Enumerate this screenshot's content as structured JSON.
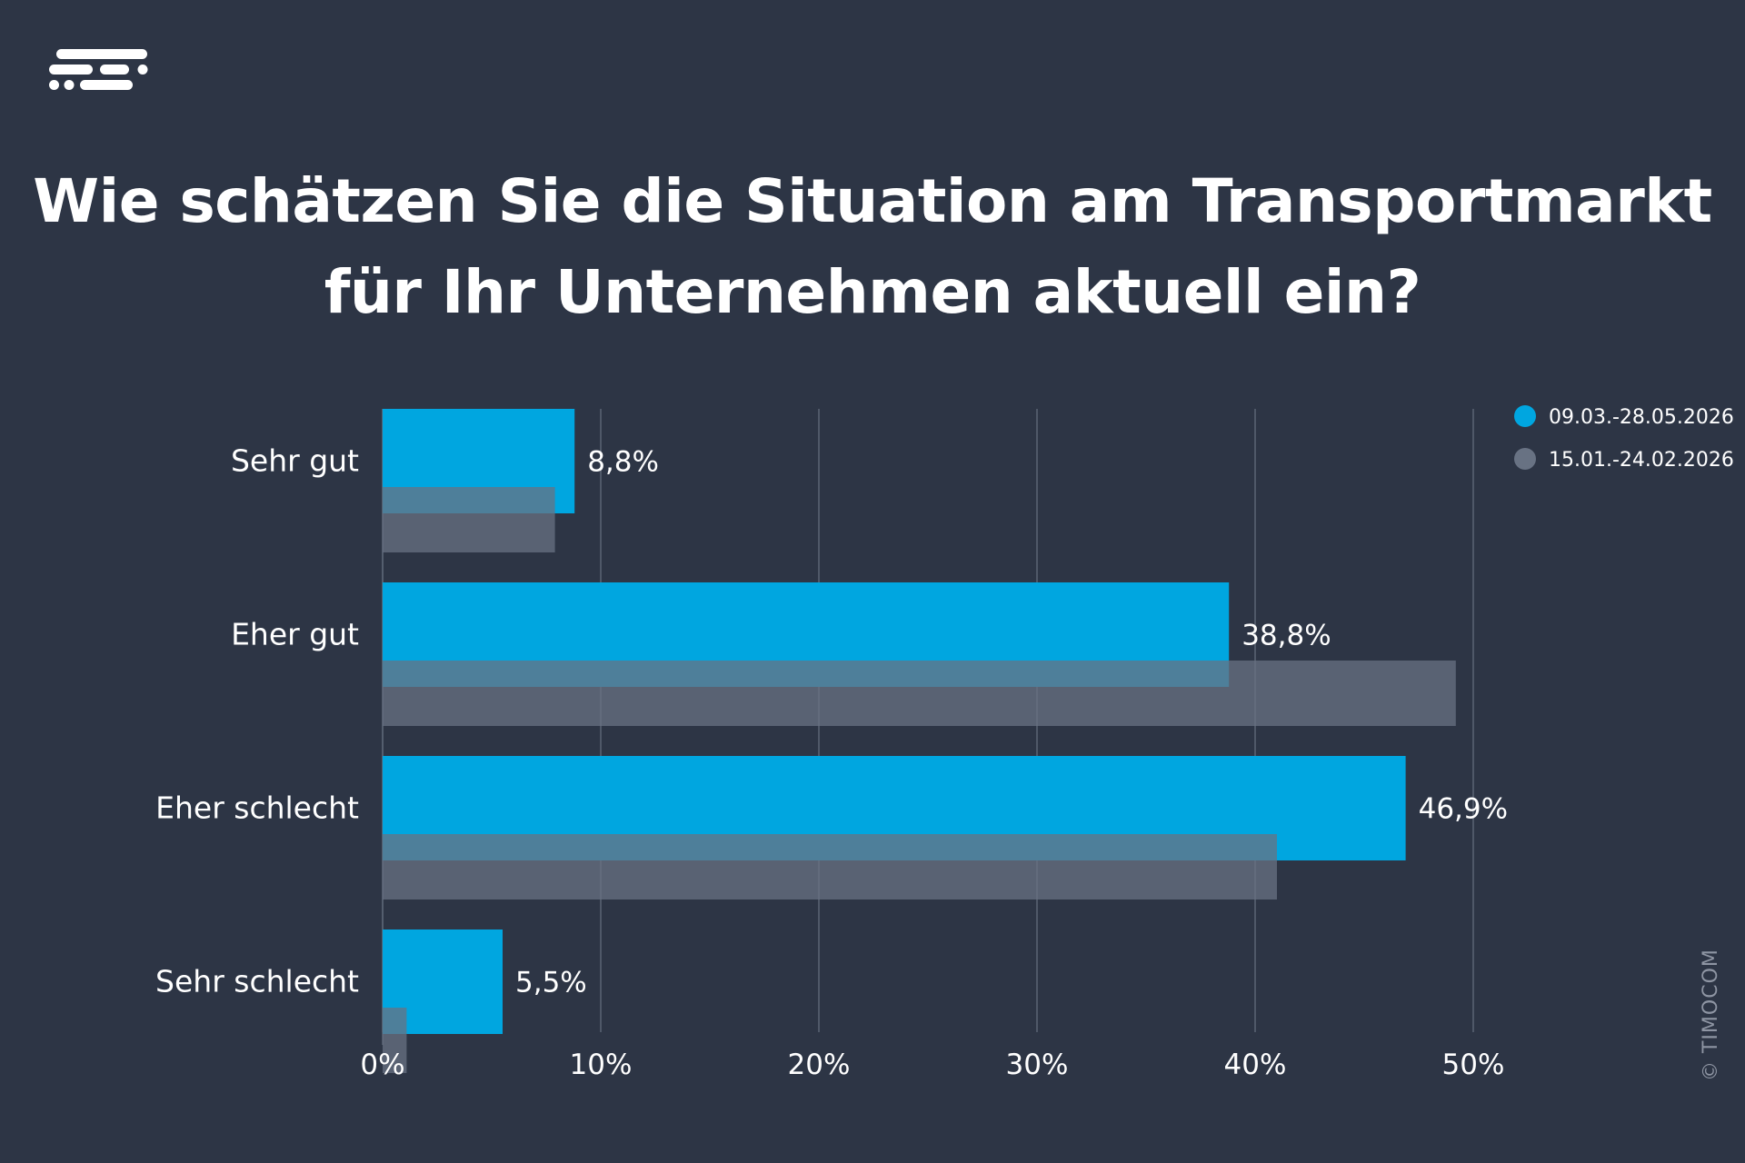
{
  "title": {
    "line1": "Wie schätzen Sie die Situation am Transportmarkt",
    "line2": "für Ihr Unternehmen aktuell ein?"
  },
  "logo": {
    "icon": "timocom-speed-lines-logo"
  },
  "copyright": "© TIMOCOM",
  "colors": {
    "background": "#2d3545",
    "current": "#00a6e0",
    "previous": "#687283",
    "grid": "#5b6474"
  },
  "chart_data": {
    "type": "bar",
    "orientation": "horizontal",
    "title": "Wie schätzen Sie die Situation am Transportmarkt für Ihr Unternehmen aktuell ein?",
    "categories": [
      "Sehr gut",
      "Eher gut",
      "Eher schlecht",
      "Sehr schlecht"
    ],
    "series": [
      {
        "name": "09.03.-28.05.2026",
        "values": [
          8.8,
          38.8,
          46.9,
          5.5
        ],
        "labels": [
          "8,8%",
          "38,8%",
          "46,9%",
          "5,5%"
        ],
        "color": "#00a6e0"
      },
      {
        "name": "15.01.-24.02.2026",
        "values": [
          7.9,
          49.2,
          41.0,
          1.1
        ],
        "color": "#687283"
      }
    ],
    "xlim": [
      0,
      50
    ],
    "x_ticks": [
      "0%",
      "10%",
      "20%",
      "30%",
      "40%",
      "50%"
    ],
    "grid": true,
    "legend_position": "top-right"
  }
}
